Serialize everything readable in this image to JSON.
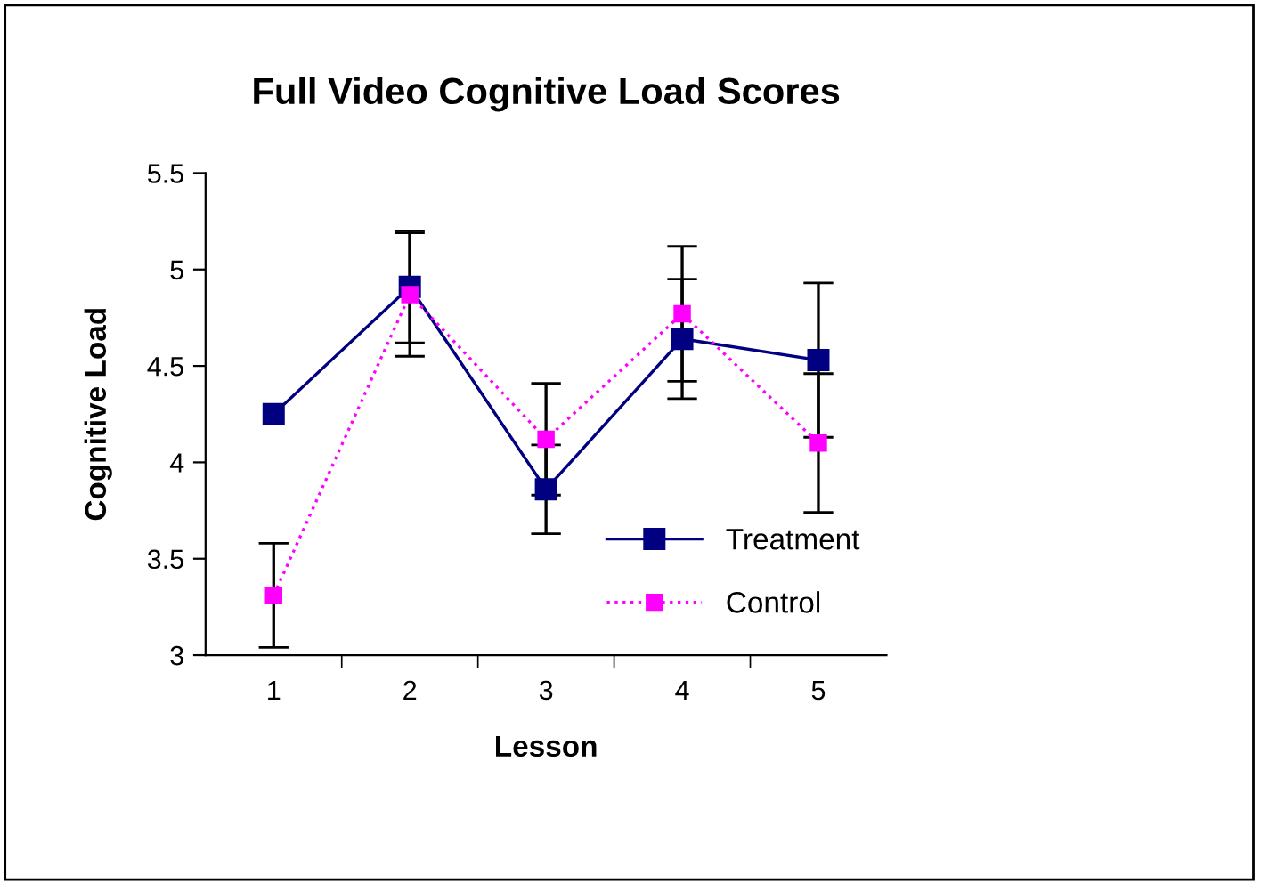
{
  "chart_data": {
    "type": "line",
    "title": "Full Video Cognitive Load Scores",
    "xlabel": "Lesson",
    "ylabel": "Cognitive Load",
    "categories": [
      "1",
      "2",
      "3",
      "4",
      "5"
    ],
    "series": [
      {
        "name": "Treatment",
        "color": "#000080",
        "values": [
          4.25,
          4.91,
          3.86,
          4.64,
          4.53
        ],
        "errors": [
          null,
          0.29,
          0.23,
          0.31,
          0.4
        ],
        "line_style": "solid"
      },
      {
        "name": "Control",
        "color": "#ff00ff",
        "values": [
          3.31,
          4.87,
          4.12,
          4.77,
          4.1
        ],
        "errors": [
          0.27,
          0.32,
          0.29,
          0.35,
          0.36
        ],
        "line_style": "dotted"
      }
    ],
    "ylim": [
      3,
      5.5
    ],
    "yticks": [
      3,
      3.5,
      4,
      4.5,
      5,
      5.5
    ],
    "grid": false,
    "legend": "bottom right",
    "marker": "square"
  }
}
